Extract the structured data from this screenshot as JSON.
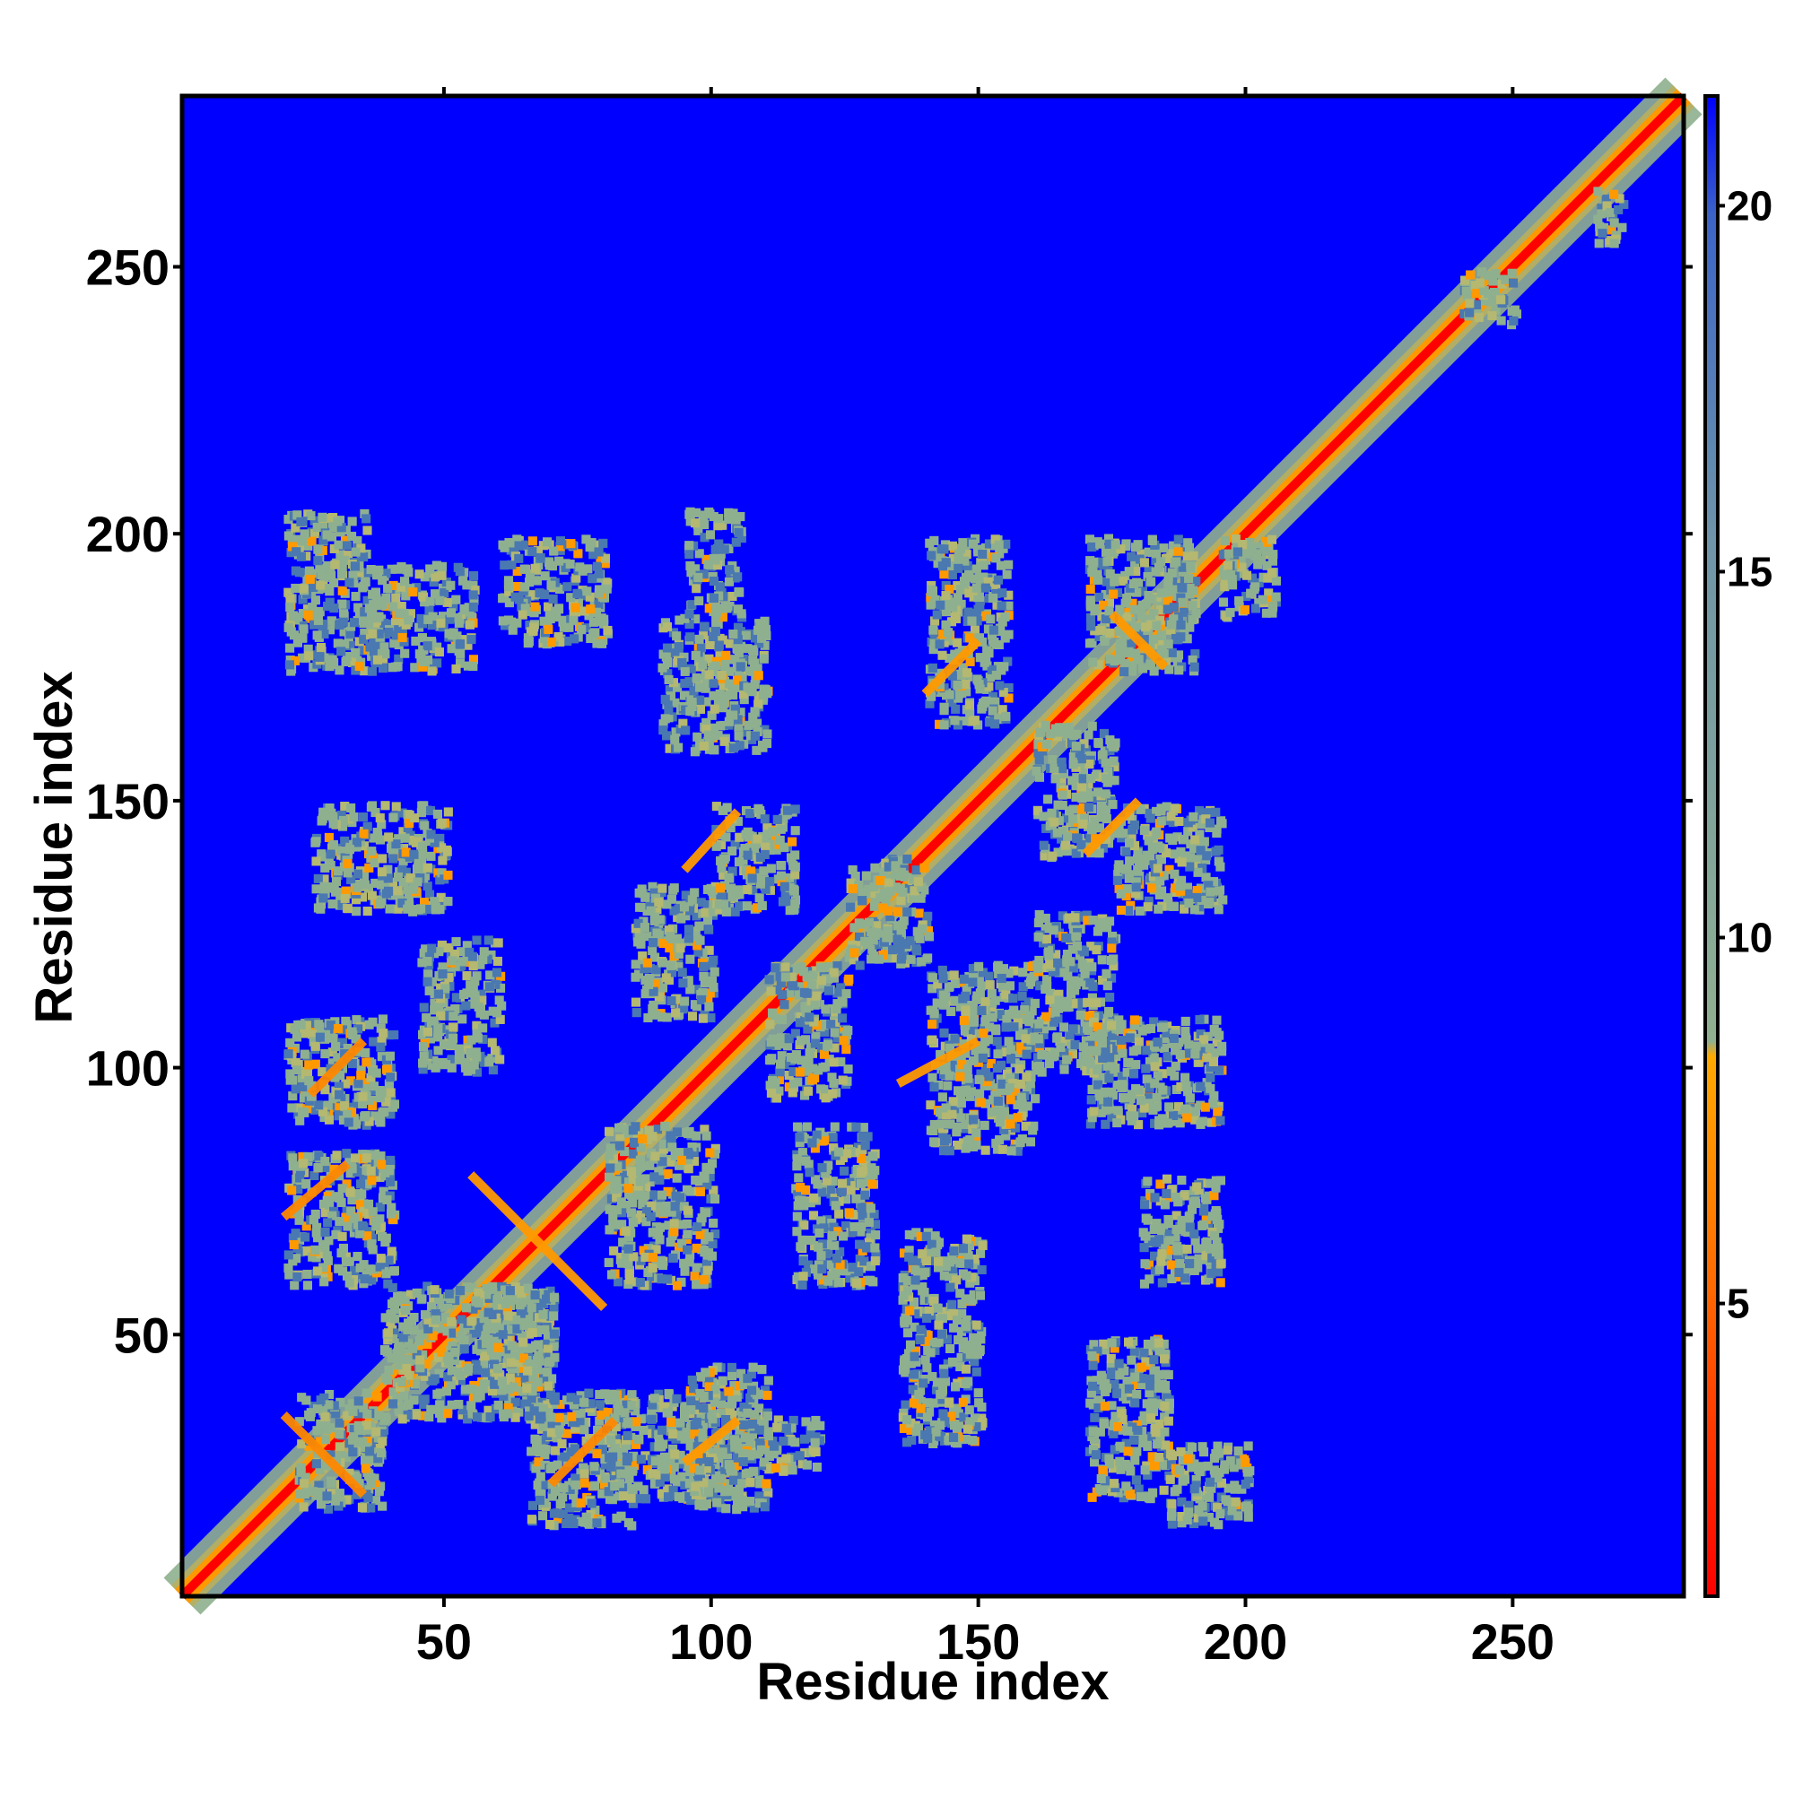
{
  "chart_data": {
    "type": "heatmap",
    "title": "",
    "xlabel": "Residue index",
    "ylabel": "Residue index",
    "xlim": [
      1,
      282
    ],
    "ylim": [
      1,
      282
    ],
    "xticks": [
      "50",
      "100",
      "150",
      "200",
      "250"
    ],
    "yticks": [
      "50",
      "100",
      "150",
      "200",
      "250"
    ],
    "colorbar": {
      "ticks": [
        "5",
        "10",
        "15",
        "20"
      ],
      "range": [
        1,
        21.5
      ],
      "orientation": "vertical",
      "position": "right"
    },
    "colors": {
      "background": "#0000ff",
      "near": "#ff0000",
      "mid": "#ff9900",
      "far": "#8fb08f",
      "farthest": "#4a78b0"
    },
    "grid": false,
    "values_description_units": "distance",
    "clusters": [
      {
        "x": [
          20,
          35
        ],
        "y": [
          35,
          20
        ],
        "value": 7
      },
      {
        "x": [
          55,
          80
        ],
        "y": [
          80,
          55
        ],
        "value": 6
      },
      {
        "x": [
          70,
          82
        ],
        "y": [
          22,
          34
        ],
        "value": 7
      },
      {
        "x": [
          95,
          105
        ],
        "y": [
          26,
          34
        ],
        "value": 6
      },
      {
        "x": [
          20,
          32
        ],
        "y": [
          72,
          82
        ],
        "value": 7
      },
      {
        "x": [
          25,
          35
        ],
        "y": [
          95,
          105
        ],
        "value": 7
      },
      {
        "x": [
          135,
          150
        ],
        "y": [
          97,
          105
        ],
        "value": 6
      },
      {
        "x": [
          95,
          105
        ],
        "y": [
          137,
          148
        ],
        "value": 6
      },
      {
        "x": [
          140,
          150
        ],
        "y": [
          170,
          180
        ],
        "value": 6
      },
      {
        "x": [
          170,
          180
        ],
        "y": [
          140,
          150
        ],
        "value": 6
      },
      {
        "x": [
          175,
          185
        ],
        "y": [
          185,
          175
        ],
        "value": 6
      }
    ]
  }
}
